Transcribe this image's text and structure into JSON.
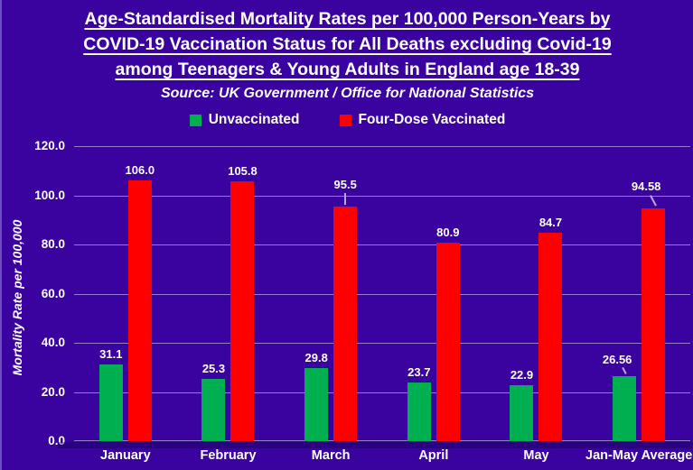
{
  "title": {
    "line1": "Age-Standardised Mortality Rates per 100,000 Person-Years by",
    "line2": "COVID-19 Vaccination Status for All Deaths excluding Covid-19",
    "line3": "among Teenagers & Young Adults in England age 18-39",
    "source": "Source: UK Government / Office for National Statistics"
  },
  "legend": [
    {
      "label": "Unvaccinated",
      "color": "#00B050"
    },
    {
      "label": "Four-Dose Vaccinated",
      "color": "#FF0000"
    }
  ],
  "colors": {
    "background": "#3A03A0",
    "bar_green": "#00B050",
    "bar_red": "#FF0000",
    "gridline": "#8F80C8",
    "text": "#FFFFFF"
  },
  "chart_data": {
    "type": "bar",
    "categories": [
      "January",
      "February",
      "March",
      "April",
      "May",
      "Jan-May Average"
    ],
    "series": [
      {
        "name": "Unvaccinated",
        "color": "#00B050",
        "values": [
          31.1,
          25.3,
          29.8,
          23.7,
          22.9,
          26.56
        ],
        "labels": [
          "31.1",
          "25.3",
          "29.8",
          "23.7",
          "22.9",
          "26.56"
        ],
        "leaders": [
          "none",
          "none",
          "none",
          "none",
          "none",
          "diagonal"
        ]
      },
      {
        "name": "Four-Dose Vaccinated",
        "color": "#FF0000",
        "values": [
          106.0,
          105.8,
          95.5,
          80.9,
          84.7,
          94.58
        ],
        "labels": [
          "106.0",
          "105.8",
          "95.5",
          "80.9",
          "84.7",
          "94.58"
        ],
        "leaders": [
          "none",
          "none",
          "vertical",
          "none",
          "none",
          "diagonal"
        ]
      }
    ],
    "title": "Age-Standardised Mortality Rates per 100,000 Person-Years by COVID-19 Vaccination Status for All Deaths excluding Covid-19 among Teenagers & Young Adults in England age 18-39",
    "xlabel": "",
    "ylabel": "Mortality Rate per 100,000",
    "ylim": [
      0,
      120
    ],
    "ytick_step": 20,
    "yticks": [
      "0.0",
      "20.0",
      "40.0",
      "60.0",
      "80.0",
      "100.0",
      "120.0"
    ],
    "grid": true,
    "legend_position": "top"
  }
}
